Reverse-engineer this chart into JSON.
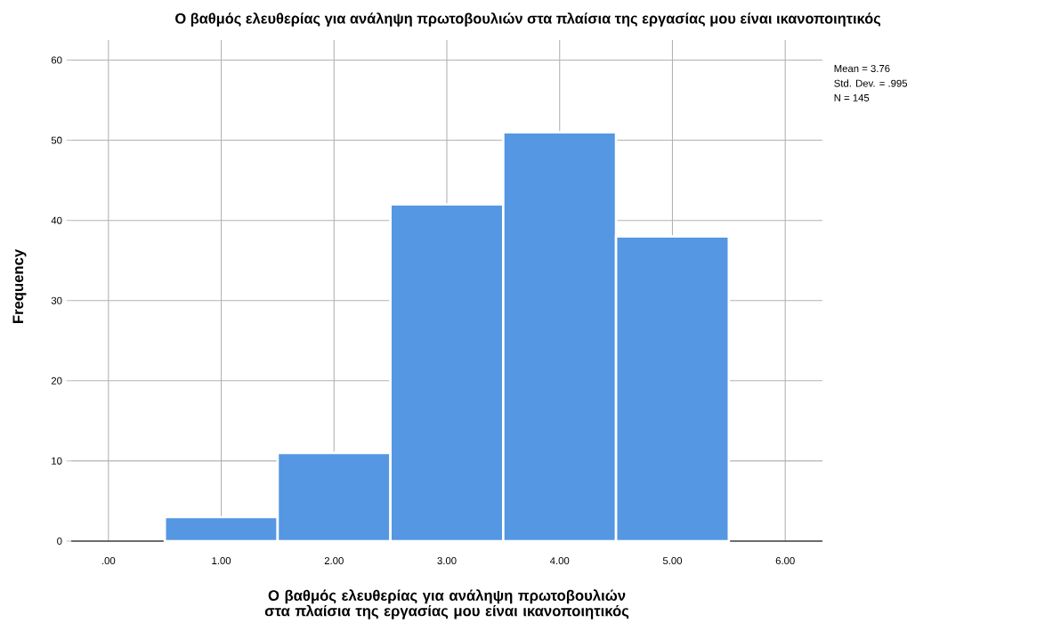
{
  "chart_data": {
    "type": "histogram",
    "title": "Ο βαθμός ελευθερίας για ανάληψη πρωτοβουλιών στα πλαίσια της εργασίας μου είναι ικανοποιητικός",
    "xlabel": "Ο βαθμός ελευθερίας για ανάληψη πρωτοβουλιών στα πλαίσια της εργασίας μου είναι ικανοποιητικός",
    "ylabel": "Frequency",
    "bins": [
      0.5,
      1.5,
      2.5,
      3.5,
      4.5,
      5.5
    ],
    "values": [
      3,
      11,
      42,
      51,
      38
    ],
    "color": "#5597e3",
    "xlim": [
      -0.33,
      6.33
    ],
    "ylim": [
      0,
      62.5
    ],
    "xticks": [
      {
        "value": 0,
        "label": ".00"
      },
      {
        "value": 1,
        "label": "1.00"
      },
      {
        "value": 2,
        "label": "2.00"
      },
      {
        "value": 3,
        "label": "3.00"
      },
      {
        "value": 4,
        "label": "4.00"
      },
      {
        "value": 5,
        "label": "5.00"
      },
      {
        "value": 6,
        "label": "6.00"
      }
    ],
    "yticks": [
      0,
      10,
      20,
      30,
      40,
      50,
      60
    ],
    "grid": true,
    "annotations": [
      "Mean = 3.76",
      "Std. Dev. = .995",
      "N = 145"
    ]
  }
}
